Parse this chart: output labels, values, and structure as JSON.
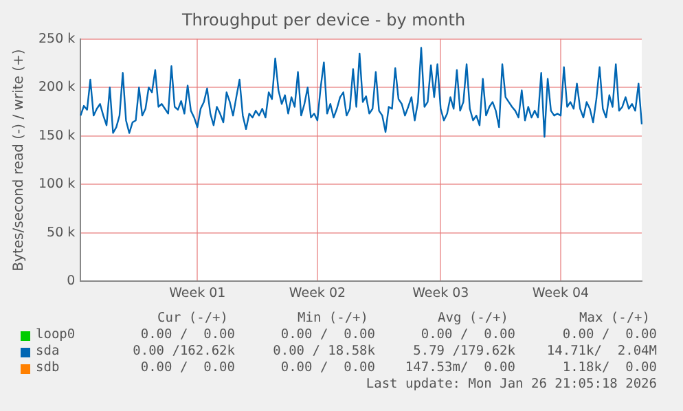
{
  "chart_data": {
    "type": "line",
    "title": "Throughput per device - by month",
    "ylabel": "Bytes/second read (-) / write (+)",
    "categories": [
      null,
      null,
      null,
      null,
      null,
      null,
      null,
      null,
      null,
      null,
      null,
      null,
      null,
      null,
      null,
      null,
      null,
      null,
      null,
      null,
      null,
      null,
      null,
      null,
      null,
      null,
      null,
      null,
      null,
      null,
      null,
      null,
      null,
      null,
      null,
      null,
      "Week 01",
      null,
      null,
      null,
      null,
      null,
      null,
      null,
      null,
      null,
      null,
      null,
      null,
      null,
      null,
      null,
      null,
      null,
      null,
      null,
      null,
      null,
      null,
      null,
      null,
      null,
      null,
      null,
      null,
      null,
      null,
      null,
      null,
      null,
      null,
      null,
      null,
      "Week 02",
      null,
      null,
      null,
      null,
      null,
      null,
      null,
      null,
      null,
      null,
      null,
      null,
      null,
      null,
      null,
      null,
      null,
      null,
      null,
      null,
      null,
      null,
      null,
      null,
      null,
      null,
      null,
      null,
      null,
      null,
      null,
      null,
      null,
      null,
      null,
      null,
      null,
      "Week 03",
      null,
      null,
      null,
      null,
      null,
      null,
      null,
      null,
      null,
      null,
      null,
      null,
      null,
      null,
      null,
      null,
      null,
      null,
      null,
      null,
      null,
      null,
      null,
      null,
      null,
      null,
      null,
      null,
      null,
      null,
      null,
      null,
      null,
      null,
      null,
      null,
      "Week 04",
      null,
      null,
      null,
      null,
      null,
      null,
      null,
      null,
      null,
      null,
      null,
      null,
      null,
      null,
      null,
      null,
      null,
      null,
      null,
      null,
      null,
      null,
      null,
      null,
      null
    ],
    "series": [
      {
        "name": "loop0",
        "color": "#00cc00",
        "values": [
          null,
          null,
          null,
          null,
          null,
          null,
          null,
          null,
          null,
          null,
          null,
          null,
          null,
          null,
          null,
          null,
          null,
          null,
          null,
          null,
          null,
          null,
          null,
          null,
          null,
          null,
          null,
          null,
          null,
          null,
          null,
          null,
          null,
          null,
          null,
          null,
          null,
          null,
          null,
          null,
          null,
          null,
          null,
          null,
          null,
          null,
          null,
          null,
          null,
          null,
          null,
          null,
          null,
          null,
          null,
          null,
          null,
          null,
          null,
          null,
          null,
          null,
          null,
          null,
          null,
          null,
          null,
          null,
          null,
          null,
          null,
          null,
          null,
          null,
          null,
          null,
          null,
          null,
          null,
          null,
          null,
          null,
          null,
          null,
          null,
          null,
          null,
          null,
          null,
          null,
          null,
          null,
          null,
          null,
          null,
          null,
          null,
          null,
          null,
          null,
          null,
          null,
          null,
          null,
          null,
          null,
          null,
          null,
          null,
          null,
          null,
          null,
          null,
          null,
          null,
          null,
          null,
          null,
          null,
          null,
          null,
          null,
          null,
          null,
          null,
          null,
          null,
          null,
          null,
          null,
          null,
          null,
          null,
          null,
          null,
          null,
          null,
          null,
          null,
          null,
          null,
          null,
          null,
          null,
          null,
          null,
          null,
          null,
          null,
          null,
          null,
          null,
          null,
          null,
          null,
          null,
          null,
          null,
          null,
          null,
          null,
          null,
          null,
          null,
          null,
          null,
          null,
          null,
          null,
          null,
          null,
          null,
          null,
          null
        ]
      },
      {
        "name": "sda",
        "color": "#0066b3",
        "values": [
          171000,
          181000,
          177000,
          208000,
          171000,
          178000,
          183000,
          171000,
          161000,
          200000,
          153000,
          159000,
          171000,
          215000,
          166000,
          153000,
          164000,
          166000,
          200000,
          171000,
          178000,
          200000,
          195000,
          218000,
          180000,
          183000,
          178000,
          173000,
          222000,
          180000,
          177000,
          186000,
          173000,
          202000,
          176000,
          169000,
          159000,
          178000,
          185000,
          199000,
          173000,
          161000,
          180000,
          173000,
          164000,
          195000,
          185000,
          171000,
          190000,
          208000,
          171000,
          157000,
          173000,
          169000,
          176000,
          171000,
          178000,
          169000,
          195000,
          188000,
          230000,
          197000,
          183000,
          192000,
          173000,
          190000,
          180000,
          216000,
          171000,
          183000,
          200000,
          169000,
          173000,
          166000,
          200000,
          226000,
          173000,
          183000,
          169000,
          178000,
          190000,
          195000,
          171000,
          178000,
          219000,
          180000,
          235000,
          185000,
          191000,
          173000,
          178000,
          216000,
          176000,
          171000,
          154000,
          180000,
          178000,
          220000,
          188000,
          183000,
          171000,
          180000,
          190000,
          166000,
          185000,
          241000,
          180000,
          185000,
          223000,
          190000,
          224000,
          178000,
          166000,
          173000,
          190000,
          178000,
          218000,
          176000,
          185000,
          224000,
          178000,
          166000,
          171000,
          161000,
          209000,
          171000,
          180000,
          185000,
          176000,
          159000,
          224000,
          190000,
          185000,
          180000,
          176000,
          169000,
          197000,
          166000,
          180000,
          169000,
          176000,
          169000,
          215000,
          149000,
          209000,
          176000,
          171000,
          173000,
          171000,
          221000,
          180000,
          185000,
          178000,
          204000,
          178000,
          169000,
          185000,
          178000,
          164000,
          188000,
          221000,
          178000,
          169000,
          192000,
          180000,
          224000,
          176000,
          180000,
          190000,
          178000,
          183000,
          176000,
          204000,
          162000
        ]
      },
      {
        "name": "sdb",
        "color": "#ff8000",
        "values": [
          null,
          null,
          null,
          null,
          null,
          null,
          null,
          null,
          null,
          null,
          null,
          null,
          null,
          null,
          null,
          null,
          null,
          null,
          null,
          null,
          null,
          null,
          null,
          null,
          null,
          null,
          null,
          null,
          null,
          null,
          null,
          null,
          null,
          null,
          null,
          null,
          null,
          null,
          null,
          null,
          null,
          null,
          null,
          null,
          null,
          null,
          null,
          null,
          null,
          null,
          null,
          null,
          null,
          null,
          null,
          null,
          null,
          null,
          null,
          null,
          null,
          null,
          null,
          null,
          null,
          null,
          null,
          null,
          null,
          null,
          null,
          null,
          null,
          null,
          null,
          null,
          null,
          null,
          null,
          null,
          null,
          null,
          null,
          null,
          null,
          null,
          null,
          null,
          null,
          null,
          null,
          null,
          null,
          null,
          null,
          null,
          null,
          null,
          null,
          null,
          null,
          null,
          null,
          null,
          null,
          null,
          null,
          null,
          null,
          null,
          null,
          null,
          null,
          null,
          null,
          null,
          null,
          null,
          null,
          null,
          null,
          null,
          null,
          null,
          null,
          null,
          null,
          null,
          null,
          null,
          null,
          null,
          null,
          null,
          null,
          null,
          null,
          null,
          null,
          null,
          null,
          null,
          null,
          null,
          null,
          null,
          null,
          null,
          null,
          null,
          null,
          null,
          null,
          null,
          null,
          null,
          null,
          null,
          null,
          null,
          null,
          null,
          null,
          null,
          null,
          null,
          null,
          null,
          null,
          null,
          null,
          null,
          null,
          null
        ]
      }
    ],
    "ylim": [
      0,
      250000
    ],
    "yticks": [
      0,
      {
        "value": 50000,
        "label": "50 k"
      },
      {
        "value": 100000,
        "label": "100 k"
      },
      {
        "value": 150000,
        "label": "150 k"
      },
      {
        "value": 200000,
        "label": "200 k"
      },
      {
        "value": 250000,
        "label": "250 k"
      }
    ],
    "grid": true,
    "legend": "bottom",
    "marker": "none",
    "line_style": "solid",
    "annotations": [
      "Cur (-/+)",
      "Min (-/+)",
      "Avg (-/+)",
      "Max (-/+)",
      "0.00 /  0.00",
      "0.00 /  0.00",
      "0.00 /  0.00",
      "0.00 /  0.00",
      "0.00 /162.62k",
      "0.00 / 18.58k",
      "5.79 /179.62k",
      "14.71k/  2.04M",
      "0.00 /  0.00",
      "0.00 /  0.00",
      "147.53m/  0.00",
      "1.18k/  0.00",
      "Last update: Mon Jan 26 21:05:18 2026"
    ]
  }
}
